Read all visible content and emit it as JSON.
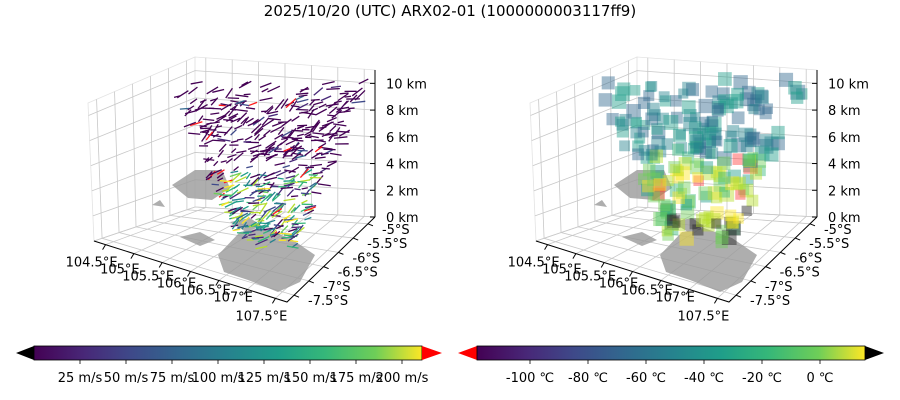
{
  "title": "2025/10/20 (UTC) ARX02-01 (1000000003117ff9)",
  "chart_data": [
    {
      "type": "scatter",
      "panel": "left",
      "variable": "wind vectors colored by speed",
      "x_ticks": [
        "104.5°E",
        "105°E",
        "105.5°E",
        "106°E",
        "106.5°E",
        "107°E",
        "107.5°E"
      ],
      "y_ticks": [
        "-5°S",
        "-5.5°S",
        "-6°S",
        "-6.5°S",
        "-7°S",
        "-7.5°S"
      ],
      "z_ticks": [
        "0 km",
        "2 km",
        "4 km",
        "6 km",
        "8 km",
        "10 km"
      ],
      "xlim": [
        104.3,
        107.7
      ],
      "ylim": [
        -7.7,
        -4.8
      ],
      "zlim": [
        0,
        11
      ],
      "colorbar": {
        "colormap": "viridis",
        "extend": "both",
        "under_color": "#000000",
        "over_color": "#ff0000",
        "ticks": [
          "25 m/s",
          "50 m/s",
          "75 m/s",
          "100 m/s",
          "125 m/s",
          "150 m/s",
          "175 m/s",
          "200 m/s"
        ]
      }
    },
    {
      "type": "scatter",
      "panel": "right",
      "variable": "temperature cubes",
      "x_ticks": [
        "104.5°E",
        "105°E",
        "105.5°E",
        "106°E",
        "106.5°E",
        "107°E",
        "107.5°E"
      ],
      "y_ticks": [
        "-5°S",
        "-5.5°S",
        "-6°S",
        "-6.5°S",
        "-7°S",
        "-7.5°S"
      ],
      "z_ticks": [
        "0 km",
        "2 km",
        "4 km",
        "6 km",
        "8 km",
        "10 km"
      ],
      "xlim": [
        104.3,
        107.7
      ],
      "ylim": [
        -7.7,
        -4.8
      ],
      "zlim": [
        0,
        11
      ],
      "colorbar": {
        "colormap": "viridis",
        "extend": "both",
        "under_color": "#ff0000",
        "over_color": "#000000",
        "ticks": [
          "-100 ℃",
          "-80 ℃",
          "-60 ℃",
          "-40 ℃",
          "-20 ℃",
          "0 ℃"
        ]
      }
    }
  ]
}
